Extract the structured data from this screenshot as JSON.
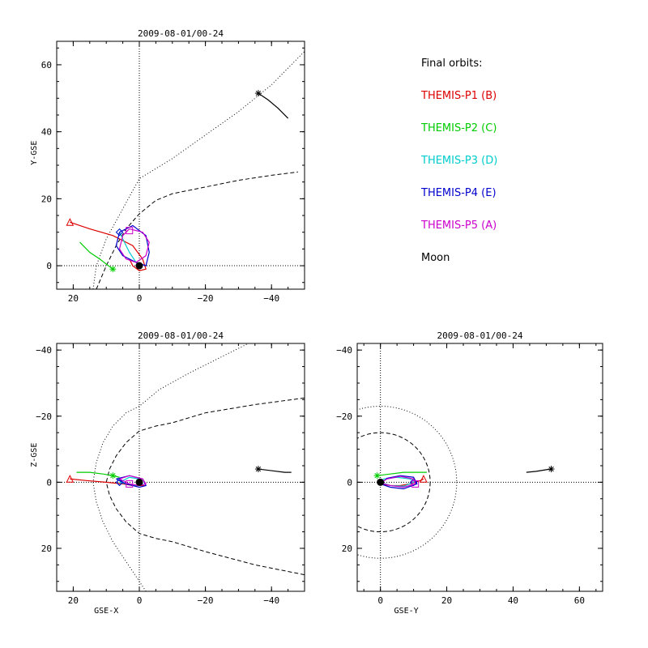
{
  "chart_data": [
    {
      "type": "line",
      "title": "2009-08-01/00-24",
      "xlabel": "",
      "ylabel": "Y-GSE",
      "xlim": [
        25,
        -50
      ],
      "ylim": [
        67,
        -7
      ],
      "xticks": [
        20,
        0,
        -20,
        -40
      ],
      "yticks": [
        0,
        20,
        40,
        60
      ],
      "series": [
        {
          "name": "THEMIS-P1 (B)",
          "color": "#dd0000",
          "x": [
            21,
            15,
            8,
            2,
            -1,
            -2,
            0,
            2,
            3
          ],
          "y": [
            13,
            11,
            9,
            6,
            2,
            -1,
            -1.5,
            0,
            2
          ],
          "marker": "triangle",
          "marker_at": [
            21,
            13
          ]
        },
        {
          "name": "THEMIS-P2 (C)",
          "color": "#00cc00",
          "x": [
            18,
            15,
            12,
            10,
            8
          ],
          "y": [
            7,
            4,
            2,
            0.5,
            -1
          ],
          "marker": "asterisk",
          "marker_at": [
            8,
            -1
          ]
        },
        {
          "name": "THEMIS-P3 (D)",
          "color": "#00cccc",
          "x": [
            6,
            5,
            3,
            1,
            0
          ],
          "y": [
            10,
            8,
            4,
            1,
            0
          ],
          "marker": "diamond",
          "marker_at": [
            6,
            10
          ]
        },
        {
          "name": "THEMIS-P4 (E)",
          "color": "#0000cc",
          "x": [
            6,
            7,
            5,
            1,
            -2,
            -3,
            -2,
            2,
            6
          ],
          "y": [
            10,
            6,
            3,
            1,
            0,
            4,
            9,
            12,
            10
          ],
          "marker": "diamond",
          "marker_at": [
            6,
            10
          ]
        },
        {
          "name": "THEMIS-P5 (A)",
          "color": "#cc00cc",
          "x": [
            3,
            5,
            6,
            4,
            1,
            -2,
            -3,
            -1,
            3
          ],
          "y": [
            11,
            9,
            5,
            2,
            1,
            3,
            7,
            10,
            11
          ],
          "marker": "square",
          "marker_at": [
            3,
            10.5
          ]
        },
        {
          "name": "Moon",
          "color": "#000000",
          "x": [
            -36,
            -39,
            -42,
            -45
          ],
          "y": [
            51.5,
            49.5,
            47,
            44
          ],
          "marker": "asterisk",
          "marker_at": [
            -36,
            51.5
          ]
        }
      ],
      "boundaries": [
        {
          "style": "dashed",
          "x": [
            13,
            10,
            7,
            4,
            0,
            -5,
            -10,
            -15,
            -20,
            -30,
            -40,
            -48
          ],
          "y": [
            -7,
            0,
            6,
            11,
            15.5,
            19.5,
            21.5,
            22.5,
            23.5,
            25.5,
            27,
            28
          ]
        },
        {
          "style": "dotted",
          "x": [
            14,
            13,
            10,
            5,
            0,
            -10,
            -20,
            -30,
            -40,
            -50
          ],
          "y": [
            -7,
            0,
            8,
            17,
            26,
            32,
            39,
            46,
            54,
            64
          ]
        }
      ],
      "earth": [
        0,
        0
      ]
    },
    {
      "type": "line",
      "title": "2009-08-01/00-24",
      "xlabel": "GSE-X",
      "ylabel": "Z-GSE",
      "xlim": [
        25,
        -50
      ],
      "ylim": [
        -42,
        33
      ],
      "xticks": [
        20,
        0,
        -20,
        -40
      ],
      "yticks": [
        20,
        0,
        -20,
        -40
      ],
      "series": [
        {
          "name": "THEMIS-P1 (B)",
          "color": "#dd0000",
          "x": [
            21,
            16,
            10,
            5,
            2,
            0,
            -2
          ],
          "y": [
            -1,
            -0.5,
            0,
            0.5,
            1,
            1,
            1
          ],
          "marker": "triangle",
          "marker_at": [
            21,
            -1
          ]
        },
        {
          "name": "THEMIS-P2 (C)",
          "color": "#00cc00",
          "x": [
            19,
            15,
            11,
            8,
            6
          ],
          "y": [
            -3,
            -3,
            -2.5,
            -2,
            -1.5
          ],
          "marker": "asterisk",
          "marker_at": [
            8,
            -2
          ]
        },
        {
          "name": "THEMIS-P3 (D)",
          "color": "#00cccc",
          "x": [
            6,
            4,
            1,
            -1,
            0,
            3,
            6
          ],
          "y": [
            0,
            0.5,
            1,
            0.5,
            -1,
            -1.5,
            0
          ],
          "marker": "diamond",
          "marker_at": [
            6,
            0
          ]
        },
        {
          "name": "THEMIS-P4 (E)",
          "color": "#0000cc",
          "x": [
            7,
            4,
            0,
            -2,
            -1,
            3,
            7
          ],
          "y": [
            -1,
            0.5,
            1.5,
            1,
            -1,
            -2,
            -1
          ],
          "marker": "diamond",
          "marker_at": [
            6,
            0
          ]
        },
        {
          "name": "THEMIS-P5 (A)",
          "color": "#cc00cc",
          "x": [
            6,
            3,
            0,
            -2,
            -1,
            3,
            6
          ],
          "y": [
            -1,
            0.5,
            1,
            0.5,
            -1,
            -2,
            -1
          ],
          "marker": "square",
          "marker_at": [
            3,
            0.5
          ]
        },
        {
          "name": "Moon",
          "color": "#000000",
          "x": [
            -36,
            -40,
            -44,
            -46
          ],
          "y": [
            -4,
            -3.5,
            -3,
            -3
          ],
          "marker": "asterisk",
          "marker_at": [
            -36,
            -4
          ]
        }
      ],
      "boundaries": [
        {
          "style": "dashed",
          "x": [
            -50,
            -35,
            -20,
            -10,
            -5,
            0,
            4,
            7,
            9,
            10,
            9,
            7,
            4,
            0,
            -5,
            -10,
            -20,
            -35,
            -50
          ],
          "y": [
            28,
            25,
            21,
            18,
            17,
            15.5,
            12,
            8,
            4,
            0,
            -4,
            -8,
            -12,
            -15.5,
            -17,
            -18,
            -21,
            -23.5,
            -25.5
          ]
        },
        {
          "style": "dotted",
          "x": [
            -2,
            0,
            4,
            8,
            11,
            13,
            14,
            13,
            11,
            8,
            4,
            0,
            -6,
            -15,
            -25,
            -33
          ],
          "y": [
            33,
            30,
            24,
            18,
            12,
            6,
            0,
            -6,
            -12,
            -17,
            -21,
            -23,
            -28,
            -33,
            -38,
            -42
          ]
        }
      ],
      "earth": [
        0,
        0
      ]
    },
    {
      "type": "line",
      "title": "2009-08-01/00-24",
      "xlabel": "GSE-Y",
      "ylabel": "",
      "xlim": [
        -7,
        67
      ],
      "ylim": [
        -42,
        33
      ],
      "xticks": [
        0,
        20,
        40,
        60
      ],
      "yticks": [
        20,
        0,
        -20,
        -40
      ],
      "series": [
        {
          "name": "THEMIS-P1 (B)",
          "color": "#dd0000",
          "x": [
            0,
            3,
            6,
            9,
            12,
            13
          ],
          "y": [
            0.5,
            1,
            1,
            0.5,
            -0.5,
            -1
          ],
          "marker": "triangle",
          "marker_at": [
            13,
            -1
          ]
        },
        {
          "name": "THEMIS-P2 (C)",
          "color": "#00cc00",
          "x": [
            -1,
            3,
            7,
            11,
            14
          ],
          "y": [
            -2,
            -2.5,
            -3,
            -3,
            -3
          ],
          "marker": "asterisk",
          "marker_at": [
            -1,
            -2
          ]
        },
        {
          "name": "THEMIS-P3 (D)",
          "color": "#00cccc",
          "x": [
            0,
            3,
            7,
            10,
            9,
            5,
            1,
            0
          ],
          "y": [
            0,
            1,
            1.2,
            0,
            -1,
            -1.5,
            -1,
            0
          ],
          "marker": "diamond",
          "marker_at": [
            10,
            0
          ]
        },
        {
          "name": "THEMIS-P4 (E)",
          "color": "#0000cc",
          "x": [
            0,
            3,
            7,
            11,
            10,
            6,
            2,
            0
          ],
          "y": [
            0.5,
            1.5,
            2,
            0.5,
            -1.5,
            -2,
            -1.2,
            0.5
          ],
          "marker": "diamond",
          "marker_at": [
            10,
            0
          ]
        },
        {
          "name": "THEMIS-P5 (A)",
          "color": "#cc00cc",
          "x": [
            0,
            3,
            7,
            10.5,
            10,
            6,
            2,
            0
          ],
          "y": [
            0.2,
            1,
            1.5,
            0.5,
            -1,
            -1.8,
            -1,
            0.2
          ],
          "marker": "square",
          "marker_at": [
            10.5,
            0.5
          ]
        },
        {
          "name": "Moon",
          "color": "#000000",
          "x": [
            44,
            47,
            50,
            51.5
          ],
          "y": [
            -3,
            -3.3,
            -3.8,
            -4
          ],
          "marker": "asterisk",
          "marker_at": [
            51.5,
            -4
          ]
        }
      ],
      "boundaries": [
        {
          "style": "dashed",
          "circle": true,
          "r": 15
        },
        {
          "style": "dotted",
          "circle": true,
          "r": 23
        }
      ],
      "earth": [
        0,
        0
      ]
    }
  ],
  "legend": {
    "heading": "Final orbits:",
    "items": [
      {
        "label": "THEMIS-P1 (B)",
        "color": "#dd0000"
      },
      {
        "label": "THEMIS-P2 (C)",
        "color": "#00cc00"
      },
      {
        "label": "THEMIS-P3 (D)",
        "color": "#00cccc"
      },
      {
        "label": "THEMIS-P4 (E)",
        "color": "#0000cc"
      },
      {
        "label": "THEMIS-P5 (A)",
        "color": "#cc00cc"
      },
      {
        "label": "Moon",
        "color": "#000000"
      }
    ]
  }
}
